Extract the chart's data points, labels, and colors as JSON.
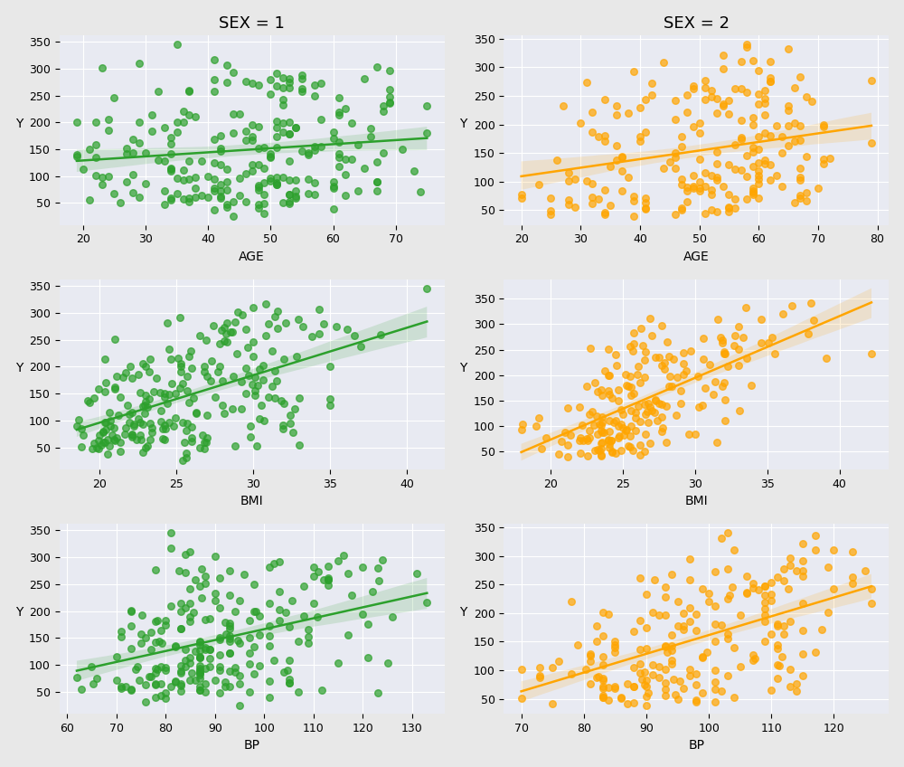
{
  "title_sex1": "SEX = 1",
  "title_sex2": "SEX = 2",
  "attributes": [
    "AGE",
    "BMI",
    "BP"
  ],
  "ylabel": "Y",
  "color_sex1": "#2ca02c",
  "color_sex2": "#ffa500",
  "scatter_alpha": 0.7,
  "scatter_size": 30,
  "bg_color": "#e8eaf2",
  "grid_color": "white",
  "title_fontsize": 13,
  "label_fontsize": 10,
  "tick_fontsize": 9,
  "fig_bg_color": "#e8e8e8"
}
